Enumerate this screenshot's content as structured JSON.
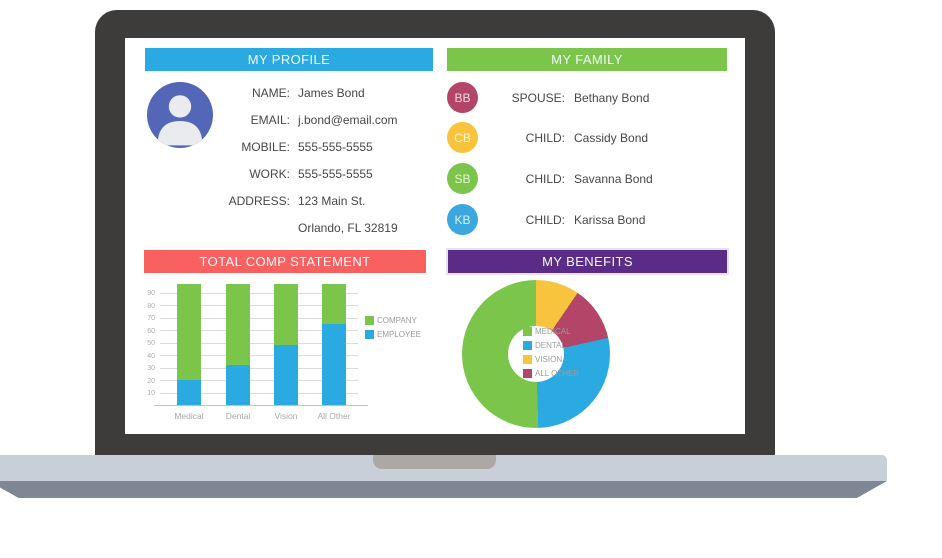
{
  "profile": {
    "header": "MY PROFILE",
    "header_color": "#2BAAE2",
    "avatar_color": "#5367B6",
    "fields": [
      {
        "label": "NAME:",
        "value": "James Bond"
      },
      {
        "label": "EMAIL:",
        "value": "j.bond@email.com"
      },
      {
        "label": "MOBILE:",
        "value": "555-555-5555"
      },
      {
        "label": "WORK:",
        "value": "555-555-5555"
      },
      {
        "label": "ADDRESS:",
        "value": "123 Main St."
      },
      {
        "label": "",
        "value": "Orlando, FL 32819"
      }
    ]
  },
  "family": {
    "header": "MY FAMILY",
    "header_color": "#7BC64A",
    "members": [
      {
        "initials": "BB",
        "color": "#B34568",
        "label": "SPOUSE:",
        "value": "Bethany Bond"
      },
      {
        "initials": "CB",
        "color": "#F8C43D",
        "label": "CHILD:",
        "value": "Cassidy Bond"
      },
      {
        "initials": "SB",
        "color": "#7BC64A",
        "label": "CHILD:",
        "value": "Savanna Bond"
      },
      {
        "initials": "KB",
        "color": "#3AA8DE",
        "label": "CHILD:",
        "value": "Karissa Bond"
      }
    ]
  },
  "comp_statement": {
    "header": "TOTAL COMP STATEMENT",
    "header_color": "#F96161"
  },
  "benefits": {
    "header": "MY BENEFITS",
    "header_color": "#5B2C87"
  },
  "chart_data": [
    {
      "type": "bar",
      "stacked": true,
      "title": "TOTAL COMP STATEMENT",
      "categories": [
        "Medical",
        "Dental",
        "Vision",
        "All Other"
      ],
      "series": [
        {
          "name": "EMPLOYEE",
          "color": "#2BAAE2",
          "values": [
            20,
            32,
            48,
            65
          ]
        },
        {
          "name": "COMPANY",
          "color": "#7BC64A",
          "values": [
            77,
            65,
            49,
            32
          ]
        }
      ],
      "totals": [
        97,
        97,
        97,
        97
      ],
      "yticks": [
        10,
        20,
        30,
        40,
        50,
        60,
        70,
        80,
        90
      ],
      "ylim": [
        0,
        100
      ],
      "grid": true,
      "legend_position": "right",
      "legend_order": [
        "COMPANY",
        "EMPLOYEE"
      ]
    },
    {
      "type": "pie",
      "donut": true,
      "title": "MY BENEFITS",
      "start_angle_deg": -45,
      "slices_draw_order": [
        {
          "name": "VISION",
          "color": "#F8C43D",
          "percent": 22
        },
        {
          "name": "ALL OTHER",
          "color": "#B34568",
          "percent": 12
        },
        {
          "name": "DENTAL",
          "color": "#2BAAE2",
          "percent": 28
        },
        {
          "name": "MEDICAL",
          "color": "#7BC64A",
          "percent": 38
        }
      ],
      "legend_order": [
        "MEDICAL",
        "DENTAL",
        "VISION",
        "ALL OTHER"
      ],
      "legend_position": "right"
    }
  ]
}
